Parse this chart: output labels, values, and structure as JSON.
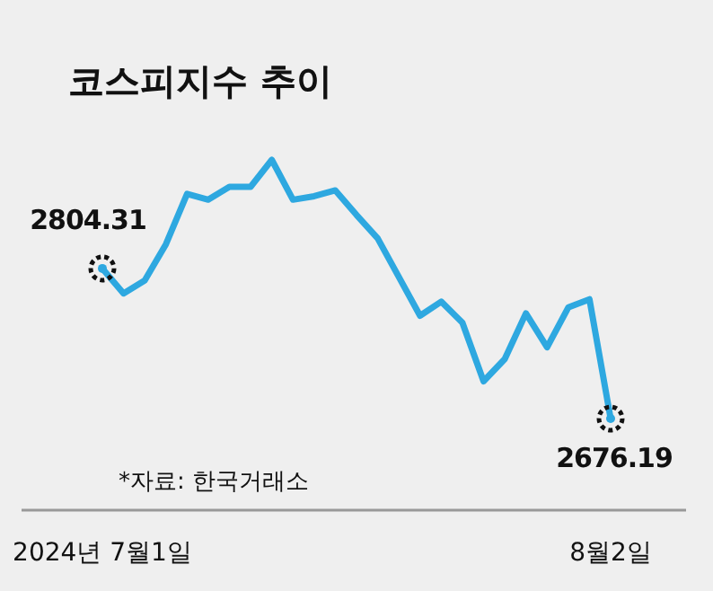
{
  "chart_data": {
    "type": "line",
    "title": "코스피지수 추이",
    "categories": [
      "2024년 7월1일",
      null,
      null,
      null,
      null,
      null,
      null,
      null,
      null,
      null,
      null,
      null,
      null,
      null,
      null,
      null,
      null,
      null,
      null,
      null,
      null,
      null,
      null,
      null,
      "8월2일"
    ],
    "values": [
      2804.31,
      2783,
      2794,
      2825,
      2868,
      2863,
      2874,
      2874,
      2897,
      2863,
      2866,
      2871,
      2850,
      2830,
      2797,
      2764,
      2776,
      2758,
      2708,
      2727,
      2766,
      2737,
      2771,
      2778,
      2676.19
    ],
    "value_labels": [
      "2804.31",
      null,
      null,
      null,
      null,
      null,
      null,
      null,
      null,
      null,
      null,
      null,
      null,
      null,
      null,
      null,
      null,
      null,
      null,
      null,
      null,
      null,
      null,
      null,
      "2676.19"
    ],
    "color": "#2ea8e0",
    "annotations": [
      "*자료: 한국거래소"
    ]
  }
}
